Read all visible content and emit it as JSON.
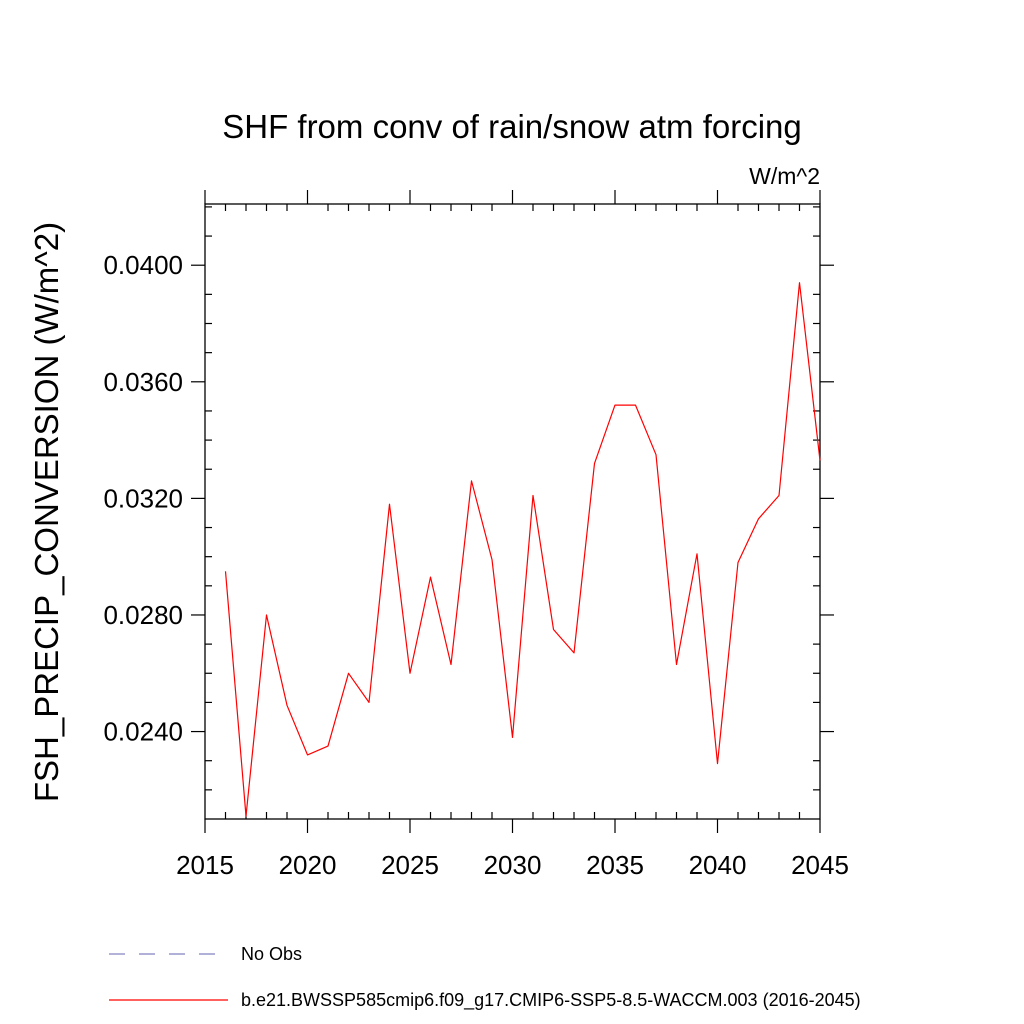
{
  "chart_data": {
    "type": "line",
    "title": "SHF from conv of rain/snow atm forcing",
    "units_label": "W/m^2",
    "xlabel": "",
    "ylabel": "FSH_PRECIP_CONVERSION  (W/m^2)",
    "xlim": [
      2015,
      2045
    ],
    "ylim": [
      0.021,
      0.0421
    ],
    "x_ticks": [
      2015,
      2020,
      2025,
      2030,
      2035,
      2040,
      2045
    ],
    "x_tick_labels": [
      "2015",
      "2020",
      "2025",
      "2030",
      "2035",
      "2040",
      "2045"
    ],
    "y_ticks": [
      0.024,
      0.028,
      0.032,
      0.036,
      0.04
    ],
    "y_tick_labels": [
      "0.0240",
      "0.0280",
      "0.0320",
      "0.0360",
      "0.0400"
    ],
    "grid": false,
    "legend_position": "bottom",
    "series": [
      {
        "name": "No Obs",
        "color": "#8080c0",
        "style": "dashed",
        "x": [],
        "values": []
      },
      {
        "name": "b.e21.BWSSP585cmip6.f09_g17.CMIP6-SSP5-8.5-WACCM.003 (2016-2045)",
        "color": "#ff0000",
        "style": "solid",
        "x": [
          2016,
          2017,
          2018,
          2019,
          2020,
          2021,
          2022,
          2023,
          2024,
          2025,
          2026,
          2027,
          2028,
          2029,
          2030,
          2031,
          2032,
          2033,
          2034,
          2035,
          2036,
          2037,
          2038,
          2039,
          2040,
          2041,
          2042,
          2043,
          2044,
          2045
        ],
        "values": [
          0.0295,
          0.0211,
          0.028,
          0.0249,
          0.0232,
          0.0235,
          0.026,
          0.025,
          0.0318,
          0.026,
          0.0293,
          0.0263,
          0.0326,
          0.0299,
          0.0238,
          0.0321,
          0.0275,
          0.0267,
          0.0332,
          0.0352,
          0.0352,
          0.0335,
          0.0263,
          0.0301,
          0.0229,
          0.0298,
          0.0313,
          0.0321,
          0.0394,
          0.0333
        ]
      }
    ]
  }
}
